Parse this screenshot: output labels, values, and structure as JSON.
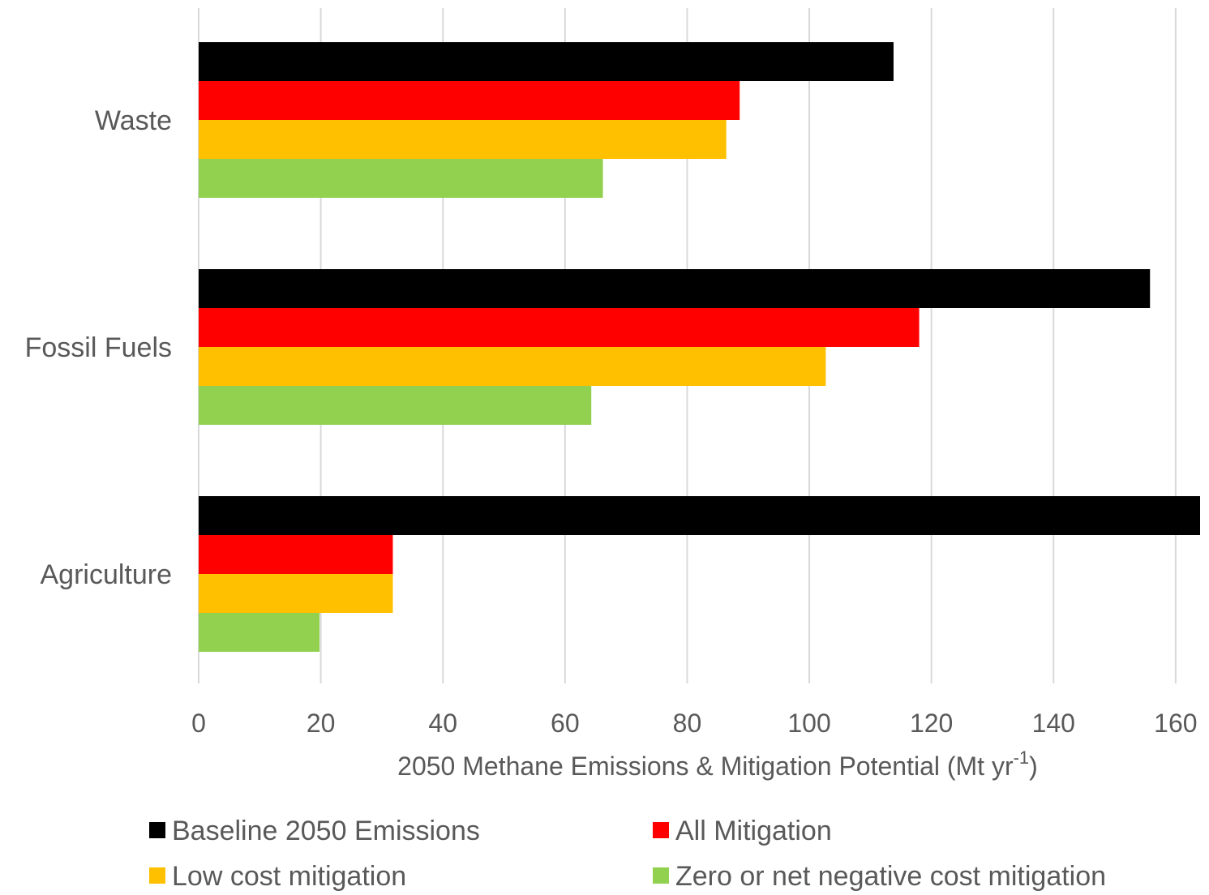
{
  "chart_data": {
    "type": "bar",
    "orientation": "horizontal",
    "categories": [
      "Waste",
      "Fossil Fuels",
      "Agriculture"
    ],
    "series": [
      {
        "name": "Baseline 2050 Emissions",
        "color": "#000000",
        "values": [
          113.8,
          155.8,
          164.0
        ]
      },
      {
        "name": "All Mitigation",
        "color": "#ff0000",
        "values": [
          88.6,
          118.0,
          31.8
        ]
      },
      {
        "name": "Low cost mitigation",
        "color": "#ffc000",
        "values": [
          86.4,
          102.7,
          31.8
        ]
      },
      {
        "name": "Zero or net negative cost mitigation",
        "color": "#92d050",
        "values": [
          66.2,
          64.3,
          19.8
        ]
      }
    ],
    "xticks": [
      "0",
      "20",
      "40",
      "60",
      "80",
      "100",
      "120",
      "140",
      "160"
    ],
    "xlim": [
      0,
      164
    ],
    "xlabel": {
      "main": "2050 Methane Emissions & Mitigation Potential (Mt yr",
      "sup": "-1",
      "tail": ")"
    },
    "ylabel": "",
    "title": "",
    "grid": "vertical",
    "legend_position": "bottom"
  }
}
